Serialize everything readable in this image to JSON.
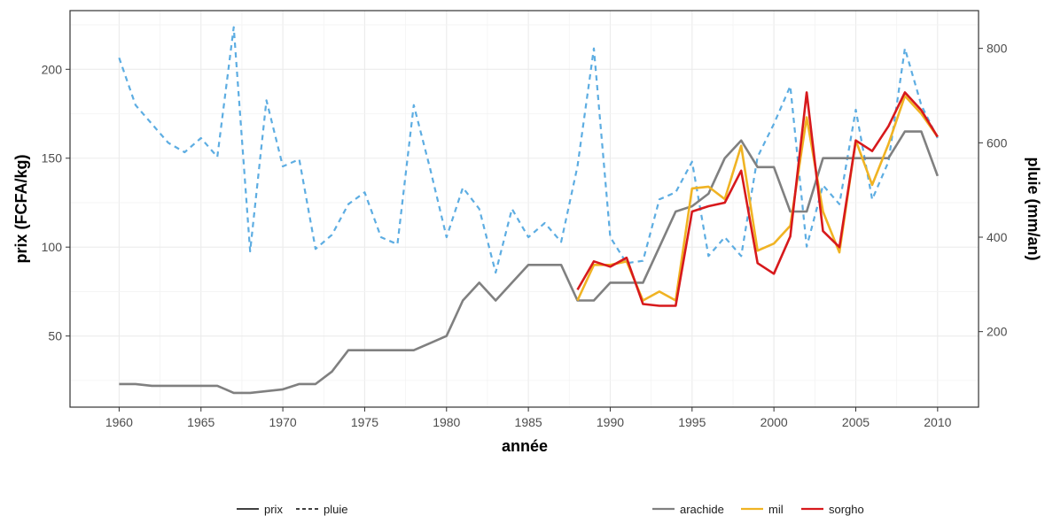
{
  "chart_data": {
    "type": "line",
    "xlabel": "année",
    "ylabel": "prix (FCFA/kg)",
    "y2label": "pluie (mm/an)",
    "xlim": [
      1957,
      2012.5
    ],
    "ylim": [
      10,
      233
    ],
    "y2lim": [
      40,
      880
    ],
    "x_ticks": [
      1960,
      1965,
      1970,
      1975,
      1980,
      1985,
      1990,
      1995,
      2000,
      2005,
      2010
    ],
    "y_ticks": [
      50,
      100,
      150,
      200
    ],
    "y2_ticks": [
      200,
      400,
      600,
      800
    ],
    "grid": true,
    "legend_linetype": {
      "items": [
        {
          "label": "prix",
          "dash": "solid"
        },
        {
          "label": "pluie",
          "dash": "dashed"
        }
      ]
    },
    "legend_color": {
      "items": [
        {
          "label": "arachide",
          "color": "#808080"
        },
        {
          "label": "mil",
          "color": "#f0b323"
        },
        {
          "label": "sorgho",
          "color": "#d7191c"
        }
      ]
    },
    "series": [
      {
        "name": "pluie",
        "axis": "right",
        "color": "#5dade2",
        "dash": "dashed",
        "x": [
          1960,
          1961,
          1962,
          1963,
          1964,
          1965,
          1966,
          1967,
          1968,
          1969,
          1970,
          1971,
          1972,
          1973,
          1974,
          1975,
          1976,
          1977,
          1978,
          1979,
          1980,
          1981,
          1982,
          1983,
          1984,
          1985,
          1986,
          1987,
          1988,
          1989,
          1990,
          1991,
          1992,
          1993,
          1994,
          1995,
          1996,
          1997,
          1998,
          1999,
          2000,
          2001,
          2002,
          2003,
          2004,
          2005,
          2006,
          2007,
          2008,
          2009,
          2010
        ],
        "y": [
          780,
          680,
          640,
          600,
          580,
          610,
          570,
          845,
          370,
          690,
          550,
          565,
          375,
          405,
          470,
          495,
          400,
          385,
          680,
          545,
          400,
          505,
          460,
          325,
          460,
          400,
          430,
          390,
          550,
          800,
          400,
          345,
          350,
          480,
          495,
          560,
          360,
          400,
          360,
          570,
          640,
          720,
          380,
          510,
          470,
          670,
          480,
          560,
          800,
          680,
          610
        ]
      },
      {
        "name": "arachide",
        "axis": "left",
        "color": "#808080",
        "dash": "solid",
        "x": [
          1960,
          1961,
          1962,
          1963,
          1964,
          1965,
          1966,
          1967,
          1968,
          1969,
          1970,
          1971,
          1972,
          1973,
          1974,
          1975,
          1976,
          1977,
          1978,
          1979,
          1980,
          1981,
          1982,
          1983,
          1984,
          1985,
          1986,
          1987,
          1988,
          1989,
          1990,
          1991,
          1992,
          1993,
          1994,
          1995,
          1996,
          1997,
          1998,
          1999,
          2000,
          2001,
          2002,
          2003,
          2004,
          2005,
          2006,
          2007,
          2008,
          2009,
          2010
        ],
        "y": [
          23,
          23,
          22,
          22,
          22,
          22,
          22,
          18,
          18,
          19,
          20,
          23,
          23,
          30,
          42,
          42,
          42,
          42,
          42,
          46,
          50,
          70,
          80,
          70,
          80,
          90,
          90,
          90,
          70,
          70,
          80,
          80,
          80,
          100,
          120,
          123,
          130,
          150,
          160,
          145,
          145,
          120,
          120,
          150,
          150,
          150,
          150,
          150,
          165,
          165,
          140
        ]
      },
      {
        "name": "mil",
        "axis": "left",
        "color": "#f0b323",
        "dash": "solid",
        "x": [
          1988,
          1989,
          1990,
          1991,
          1992,
          1993,
          1994,
          1995,
          1996,
          1997,
          1998,
          1999,
          2000,
          2001,
          2002,
          2003,
          2004,
          2005,
          2006,
          2007,
          2008,
          2009,
          2010
        ],
        "y": [
          70,
          90,
          90,
          92,
          70,
          75,
          70,
          133,
          134,
          127,
          157,
          98,
          102,
          112,
          173,
          120,
          97,
          160,
          135,
          158,
          185,
          175,
          162
        ]
      },
      {
        "name": "sorgho",
        "axis": "left",
        "color": "#d7191c",
        "dash": "solid",
        "x": [
          1988,
          1989,
          1990,
          1991,
          1992,
          1993,
          1994,
          1995,
          1996,
          1997,
          1998,
          1999,
          2000,
          2001,
          2002,
          2003,
          2004,
          2005,
          2006,
          2007,
          2008,
          2009,
          2010
        ],
        "y": [
          76,
          92,
          89,
          94,
          68,
          67,
          67,
          120,
          123,
          125,
          143,
          91,
          85,
          106,
          187,
          109,
          100,
          160,
          154,
          168,
          187,
          177,
          162
        ]
      }
    ]
  }
}
